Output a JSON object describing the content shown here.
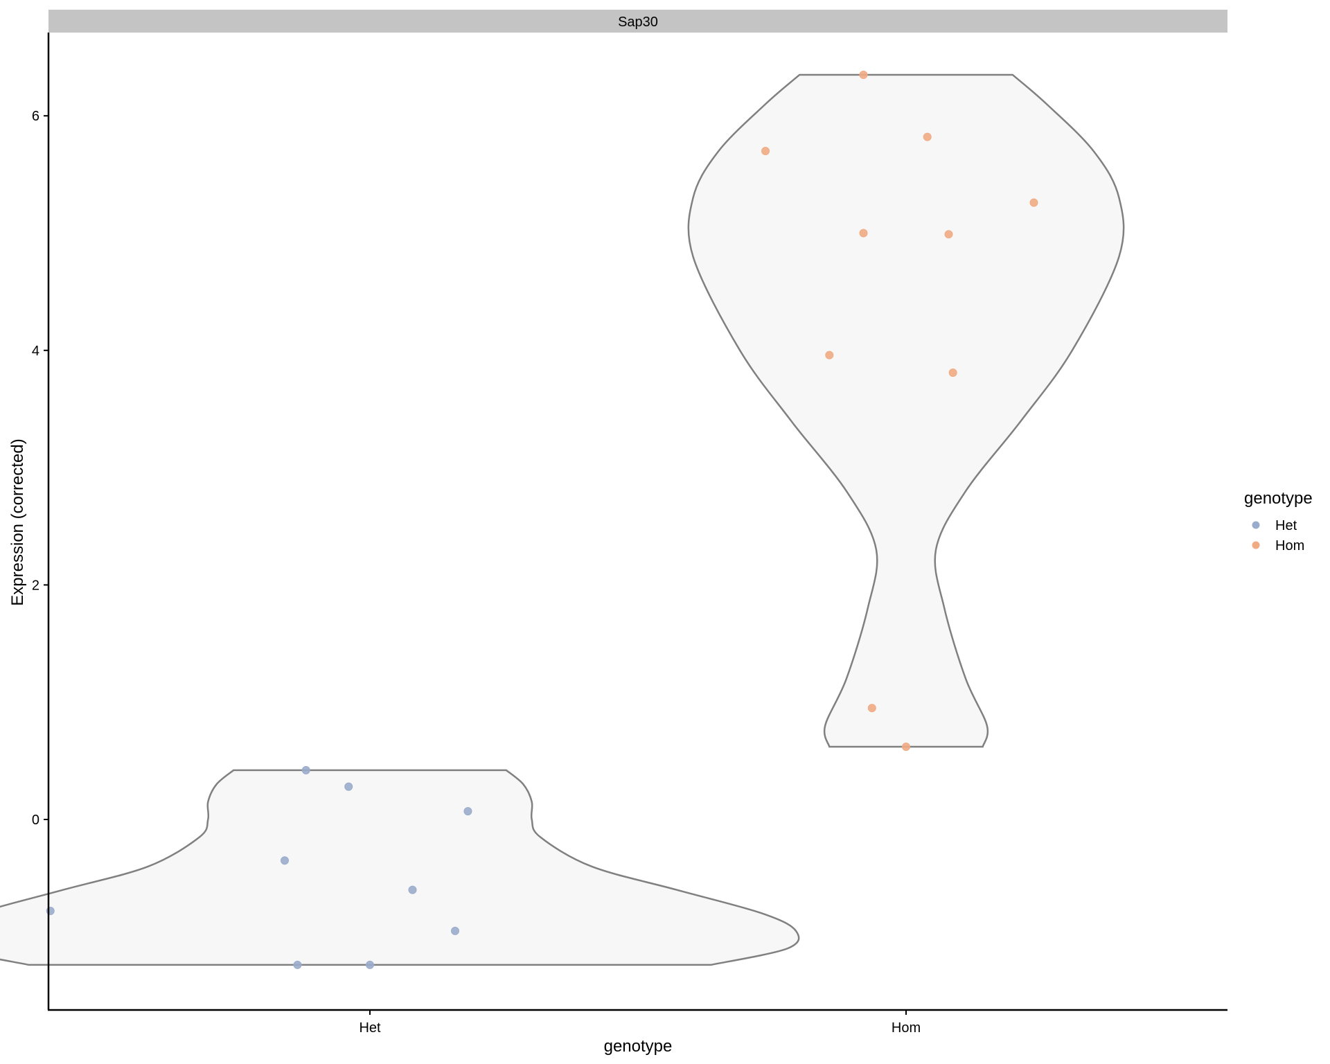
{
  "chart_data": {
    "type": "violin",
    "facet_title": "Sap30",
    "xlabel": "genotype",
    "ylabel": "Expression (corrected)",
    "categories": [
      "Het",
      "Hom"
    ],
    "ylim": [
      -1.6,
      6.75
    ],
    "yticks": [
      0,
      2,
      4,
      6
    ],
    "grid": false,
    "legend": {
      "title": "genotype",
      "position": "right",
      "entries": [
        {
          "label": "Het",
          "color": "#9aaccb"
        },
        {
          "label": "Hom",
          "color": "#f0ab83"
        }
      ]
    },
    "violin_fill": "#f7f7f7",
    "violin_stroke": "#808080",
    "series": [
      {
        "name": "Het",
        "color": "#9aaccb",
        "violin_range": [
          -1.24,
          0.42
        ],
        "violin_halfwidth": [
          [
            -1.24,
            0.8
          ],
          [
            -1.1,
            0.98
          ],
          [
            -0.95,
            1.0
          ],
          [
            -0.8,
            0.92
          ],
          [
            -0.6,
            0.72
          ],
          [
            -0.4,
            0.52
          ],
          [
            -0.15,
            0.4
          ],
          [
            0.0,
            0.38
          ],
          [
            0.15,
            0.38
          ],
          [
            0.3,
            0.36
          ],
          [
            0.42,
            0.32
          ]
        ],
        "points": [
          [
            -0.05,
            0.28
          ],
          [
            -0.15,
            0.42
          ],
          [
            0.23,
            0.07
          ],
          [
            -0.75,
            -0.78
          ],
          [
            -0.2,
            -0.35
          ],
          [
            0.1,
            -0.6
          ],
          [
            0.2,
            -0.95
          ],
          [
            -0.17,
            -1.24
          ],
          [
            0.0,
            -1.24
          ]
        ]
      },
      {
        "name": "Hom",
        "color": "#f0ab83",
        "violin_range": [
          0.62,
          6.35
        ],
        "violin_halfwidth": [
          [
            0.62,
            0.18
          ],
          [
            0.8,
            0.19
          ],
          [
            1.2,
            0.14
          ],
          [
            1.8,
            0.09
          ],
          [
            2.3,
            0.07
          ],
          [
            2.8,
            0.14
          ],
          [
            3.4,
            0.27
          ],
          [
            4.0,
            0.39
          ],
          [
            4.8,
            0.5
          ],
          [
            5.3,
            0.5
          ],
          [
            5.7,
            0.44
          ],
          [
            6.1,
            0.33
          ],
          [
            6.35,
            0.25
          ]
        ],
        "points": [
          [
            -0.1,
            6.35
          ],
          [
            0.05,
            5.82
          ],
          [
            -0.33,
            5.7
          ],
          [
            0.3,
            5.26
          ],
          [
            -0.1,
            5.0
          ],
          [
            0.1,
            4.99
          ],
          [
            -0.18,
            3.96
          ],
          [
            0.11,
            3.81
          ],
          [
            -0.08,
            0.95
          ],
          [
            0.0,
            0.62
          ]
        ]
      }
    ]
  }
}
